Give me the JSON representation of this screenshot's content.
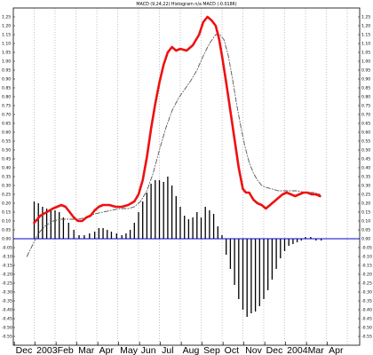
{
  "chart_data": {
    "type": "line",
    "title": "MACD (9,24,22) Histogram n/a MACD (-0.0186)",
    "xlabel": "",
    "ylabel": "",
    "ylim": [
      -0.6,
      1.4
    ],
    "y_tick_step": 0.05,
    "grid": "vertical dotted",
    "x_labels": [
      "Dec",
      "2003",
      "Feb",
      "Mar",
      "Apr",
      "May",
      "Jun",
      "Jul",
      "Aug",
      "Sep",
      "Oct",
      "Nov",
      "Dec",
      "2004",
      "Mar",
      "Apr"
    ],
    "colors": {
      "macd": "#ee1111",
      "signal": "#555555",
      "histogram": "#000000",
      "zero": "#0000cc"
    },
    "series": [
      {
        "key": "macd",
        "style": "solid-thick",
        "points": [
          [
            1.0,
            0.09
          ],
          [
            1.3,
            0.13
          ],
          [
            1.6,
            0.15
          ],
          [
            1.9,
            0.17
          ],
          [
            2.1,
            0.18
          ],
          [
            2.3,
            0.19
          ],
          [
            2.5,
            0.18
          ],
          [
            2.7,
            0.15
          ],
          [
            2.9,
            0.12
          ],
          [
            3.1,
            0.1
          ],
          [
            3.3,
            0.1
          ],
          [
            3.5,
            0.12
          ],
          [
            3.7,
            0.13
          ],
          [
            3.9,
            0.16
          ],
          [
            4.1,
            0.18
          ],
          [
            4.3,
            0.19
          ],
          [
            4.6,
            0.19
          ],
          [
            4.9,
            0.18
          ],
          [
            5.2,
            0.18
          ],
          [
            5.5,
            0.19
          ],
          [
            5.8,
            0.21
          ],
          [
            6.0,
            0.25
          ],
          [
            6.2,
            0.33
          ],
          [
            6.4,
            0.46
          ],
          [
            6.6,
            0.62
          ],
          [
            6.8,
            0.76
          ],
          [
            7.0,
            0.88
          ],
          [
            7.2,
            0.98
          ],
          [
            7.4,
            1.05
          ],
          [
            7.6,
            1.08
          ],
          [
            7.8,
            1.06
          ],
          [
            8.0,
            1.07
          ],
          [
            8.3,
            1.06
          ],
          [
            8.6,
            1.09
          ],
          [
            8.9,
            1.15
          ],
          [
            9.1,
            1.22
          ],
          [
            9.3,
            1.25
          ],
          [
            9.5,
            1.23
          ],
          [
            9.7,
            1.2
          ],
          [
            9.85,
            1.13
          ],
          [
            10.0,
            1.03
          ],
          [
            10.2,
            0.88
          ],
          [
            10.4,
            0.72
          ],
          [
            10.6,
            0.56
          ],
          [
            10.8,
            0.4
          ],
          [
            11.0,
            0.28
          ],
          [
            11.15,
            0.26
          ],
          [
            11.3,
            0.26
          ],
          [
            11.5,
            0.22
          ],
          [
            11.7,
            0.2
          ],
          [
            11.9,
            0.19
          ],
          [
            12.1,
            0.17
          ],
          [
            12.3,
            0.19
          ],
          [
            12.5,
            0.21
          ],
          [
            12.7,
            0.23
          ],
          [
            12.9,
            0.25
          ],
          [
            13.1,
            0.26
          ],
          [
            13.3,
            0.25
          ],
          [
            13.5,
            0.24
          ],
          [
            13.7,
            0.25
          ],
          [
            13.9,
            0.26
          ],
          [
            14.1,
            0.26
          ],
          [
            14.3,
            0.25
          ],
          [
            14.5,
            0.25
          ],
          [
            14.7,
            0.24
          ]
        ]
      },
      {
        "key": "signal",
        "style": "dashed",
        "points": [
          [
            0.65,
            -0.1
          ],
          [
            0.9,
            -0.04
          ],
          [
            1.2,
            0.03
          ],
          [
            1.5,
            0.07
          ],
          [
            1.9,
            0.1
          ],
          [
            2.3,
            0.11
          ],
          [
            2.7,
            0.11
          ],
          [
            3.1,
            0.11
          ],
          [
            3.5,
            0.12
          ],
          [
            3.9,
            0.14
          ],
          [
            4.3,
            0.15
          ],
          [
            4.7,
            0.16
          ],
          [
            5.1,
            0.17
          ],
          [
            5.5,
            0.17
          ],
          [
            5.8,
            0.18
          ],
          [
            6.1,
            0.21
          ],
          [
            6.4,
            0.27
          ],
          [
            6.7,
            0.37
          ],
          [
            7.0,
            0.5
          ],
          [
            7.3,
            0.62
          ],
          [
            7.6,
            0.72
          ],
          [
            7.9,
            0.79
          ],
          [
            8.2,
            0.84
          ],
          [
            8.5,
            0.89
          ],
          [
            8.8,
            0.95
          ],
          [
            9.1,
            1.03
          ],
          [
            9.4,
            1.1
          ],
          [
            9.7,
            1.15
          ],
          [
            9.9,
            1.15
          ],
          [
            10.1,
            1.12
          ],
          [
            10.3,
            1.03
          ],
          [
            10.5,
            0.9
          ],
          [
            10.7,
            0.76
          ],
          [
            10.9,
            0.63
          ],
          [
            11.1,
            0.52
          ],
          [
            11.3,
            0.43
          ],
          [
            11.5,
            0.37
          ],
          [
            11.7,
            0.33
          ],
          [
            11.9,
            0.3
          ],
          [
            12.1,
            0.29
          ],
          [
            12.4,
            0.28
          ],
          [
            12.7,
            0.27
          ],
          [
            13.0,
            0.27
          ],
          [
            13.3,
            0.27
          ],
          [
            13.6,
            0.27
          ],
          [
            14.0,
            0.26
          ],
          [
            14.4,
            0.26
          ],
          [
            14.7,
            0.25
          ]
        ]
      }
    ],
    "histogram": [
      [
        1.0,
        0.21
      ],
      [
        1.2,
        0.2
      ],
      [
        1.4,
        0.18
      ],
      [
        1.6,
        0.17
      ],
      [
        1.8,
        0.17
      ],
      [
        2.0,
        0.16
      ],
      [
        2.2,
        0.15
      ],
      [
        2.4,
        0.12
      ],
      [
        2.65,
        0.09
      ],
      [
        2.9,
        0.05
      ],
      [
        3.15,
        0.02
      ],
      [
        3.4,
        0.02
      ],
      [
        3.65,
        0.03
      ],
      [
        3.9,
        0.04
      ],
      [
        4.1,
        0.06
      ],
      [
        4.3,
        0.06
      ],
      [
        4.5,
        0.05
      ],
      [
        4.7,
        0.04
      ],
      [
        4.95,
        0.03
      ],
      [
        5.2,
        0.02
      ],
      [
        5.4,
        0.03
      ],
      [
        5.6,
        0.05
      ],
      [
        5.8,
        0.09
      ],
      [
        6.0,
        0.15
      ],
      [
        6.2,
        0.21
      ],
      [
        6.4,
        0.26
      ],
      [
        6.6,
        0.31
      ],
      [
        6.8,
        0.33
      ],
      [
        7.0,
        0.33
      ],
      [
        7.2,
        0.32
      ],
      [
        7.4,
        0.35
      ],
      [
        7.6,
        0.3
      ],
      [
        7.8,
        0.24
      ],
      [
        8.0,
        0.18
      ],
      [
        8.2,
        0.13
      ],
      [
        8.4,
        0.11
      ],
      [
        8.6,
        0.12
      ],
      [
        8.8,
        0.15
      ],
      [
        9.0,
        0.12
      ],
      [
        9.2,
        0.18
      ],
      [
        9.4,
        0.16
      ],
      [
        9.6,
        0.14
      ],
      [
        9.8,
        0.07
      ],
      [
        10.0,
        0.02
      ],
      [
        10.2,
        -0.09
      ],
      [
        10.4,
        -0.17
      ],
      [
        10.6,
        -0.26
      ],
      [
        10.8,
        -0.34
      ],
      [
        11.0,
        -0.4
      ],
      [
        11.2,
        -0.44
      ],
      [
        11.4,
        -0.42
      ],
      [
        11.6,
        -0.41
      ],
      [
        11.8,
        -0.38
      ],
      [
        12.0,
        -0.34
      ],
      [
        12.2,
        -0.29
      ],
      [
        12.4,
        -0.23
      ],
      [
        12.6,
        -0.17
      ],
      [
        12.8,
        -0.11
      ],
      [
        13.0,
        -0.07
      ],
      [
        13.2,
        -0.04
      ],
      [
        13.4,
        -0.03
      ],
      [
        13.6,
        -0.02
      ],
      [
        13.8,
        -0.01
      ],
      [
        14.0,
        0.01
      ],
      [
        14.25,
        0.01
      ],
      [
        14.5,
        -0.01
      ],
      [
        14.75,
        -0.01
      ]
    ]
  }
}
